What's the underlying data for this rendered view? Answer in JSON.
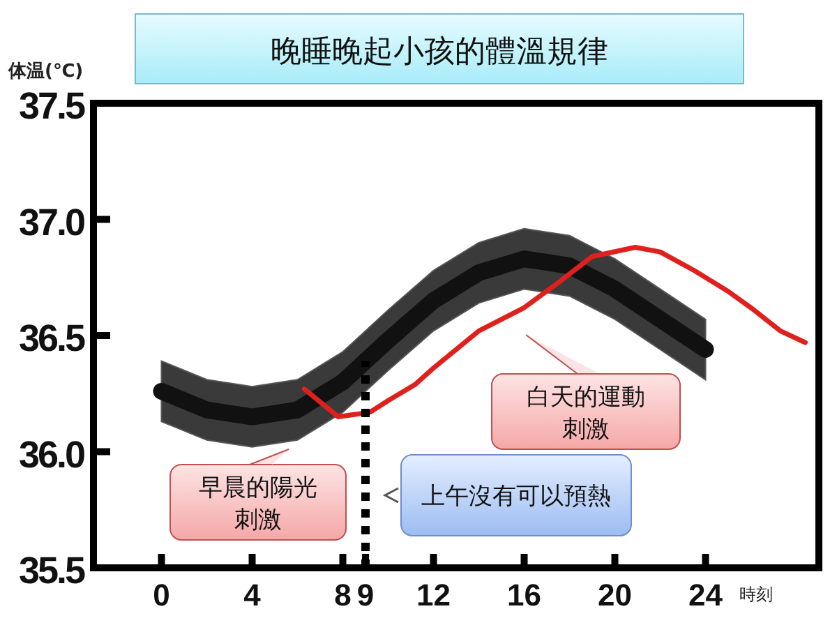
{
  "chart_data": {
    "type": "line",
    "title": "晚睡晚起小孩的體溫規律",
    "ylabel": "体温(℃)",
    "xlabel": "時刻",
    "xlim": [
      -3,
      29
    ],
    "xticks": [
      0,
      4,
      8,
      9,
      12,
      16,
      20,
      24
    ],
    "ylim": [
      35.5,
      37.5
    ],
    "yticks": [
      35.5,
      {
        "value": 36,
        "label": "36.0"
      },
      36.5,
      {
        "value": 37,
        "label": "37.0"
      },
      37.5
    ],
    "series": [
      {
        "color": "#111111",
        "x": [
          0,
          2,
          4,
          6,
          8,
          10,
          12,
          14,
          16,
          18,
          20,
          22,
          24
        ],
        "values": [
          36.26,
          36.18,
          36.15,
          36.18,
          36.3,
          36.48,
          36.65,
          36.77,
          36.83,
          36.8,
          36.7,
          36.57,
          36.44
        ],
        "lower": [
          36.13,
          36.05,
          36.02,
          36.05,
          36.17,
          36.35,
          36.52,
          36.64,
          36.7,
          36.67,
          36.57,
          36.44,
          36.31
        ],
        "upper": [
          36.39,
          36.31,
          36.28,
          36.31,
          36.43,
          36.61,
          36.78,
          36.9,
          36.96,
          36.93,
          36.83,
          36.7,
          36.57
        ]
      },
      {
        "color": "#e0201c",
        "x": [
          6.3,
          7.8,
          9.2,
          10,
          11.2,
          12,
          14,
          16,
          17.4,
          19,
          20.9,
          22,
          23.5,
          25,
          26,
          27.3,
          28.4
        ],
        "values": [
          36.27,
          36.15,
          36.17,
          36.22,
          36.29,
          36.36,
          36.52,
          36.62,
          36.72,
          36.84,
          36.88,
          36.86,
          36.78,
          36.69,
          36.62,
          36.52,
          36.47
        ]
      }
    ],
    "ref_lines": [
      {
        "axis": "x",
        "value": 9,
        "line_style": "dotted",
        "color": "#000000"
      }
    ],
    "annotations": [
      "早晨的陽光刺激",
      "白天的運動刺激",
      "上午沒有可以預熱"
    ],
    "grid": false,
    "marker": "none",
    "line_style": "solid"
  }
}
